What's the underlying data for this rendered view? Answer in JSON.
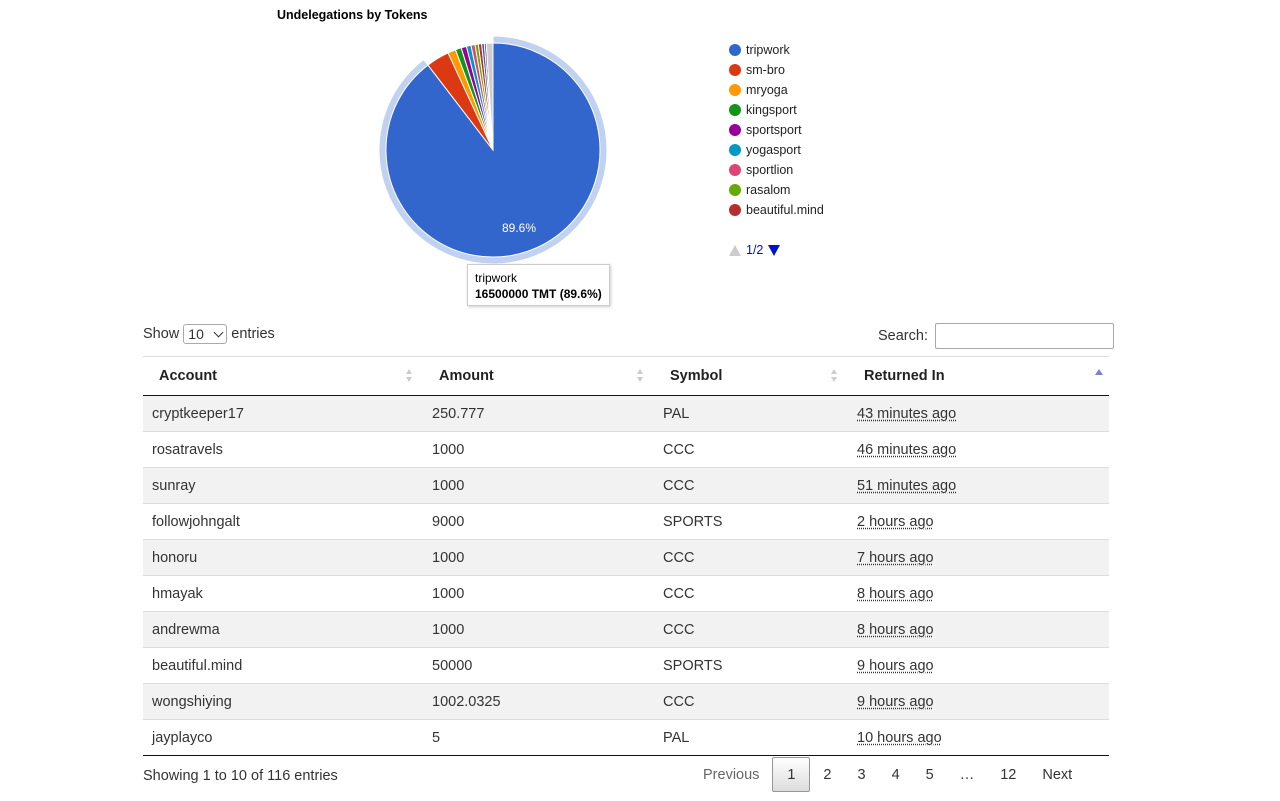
{
  "chart_data": {
    "type": "pie",
    "title": "Undelegations by Tokens",
    "slices": [
      {
        "label": "tripwork",
        "value": 89.6,
        "color": "#3366cc"
      },
      {
        "label": "sm-bro",
        "value": 3.5,
        "color": "#dc3912"
      },
      {
        "label": "mryoga",
        "value": 1.2,
        "color": "#ff9900"
      },
      {
        "label": "kingsport",
        "value": 0.9,
        "color": "#109618"
      },
      {
        "label": "sportsport",
        "value": 0.8,
        "color": "#990099"
      },
      {
        "label": "yogasport",
        "value": 0.7,
        "color": "#0099c6"
      },
      {
        "label": "sportlion",
        "value": 0.6,
        "color": "#dd4477"
      },
      {
        "label": "rasalom",
        "value": 0.5,
        "color": "#66aa00"
      },
      {
        "label": "beautiful.mind",
        "value": 0.5,
        "color": "#b82e2e"
      },
      {
        "label": "",
        "value": 0.4,
        "color": "#316395"
      },
      {
        "label": "",
        "value": 0.3,
        "color": "#994499"
      },
      {
        "label": "",
        "value": 1.0,
        "color": "#cccccc"
      }
    ],
    "slice_label": "89.6%",
    "highlighted": "tripwork",
    "legend_position": "right",
    "legend_pager": "1/2"
  },
  "tooltip": {
    "name": "tripwork",
    "value": "16500000 TMT (89.6%)"
  },
  "length": {
    "show": "Show",
    "value": "10",
    "entries": "entries"
  },
  "search": {
    "label": "Search:",
    "value": ""
  },
  "table": {
    "headers": [
      "Account",
      "Amount",
      "Symbol",
      "Returned In"
    ],
    "rows": [
      [
        "cryptkeeper17",
        "250.777",
        "PAL",
        "43 minutes ago"
      ],
      [
        "rosatravels",
        "1000",
        "CCC",
        "46 minutes ago"
      ],
      [
        "sunray",
        "1000",
        "CCC",
        "51 minutes ago"
      ],
      [
        "followjohngalt",
        "9000",
        "SPORTS",
        "2 hours ago"
      ],
      [
        "honoru",
        "1000",
        "CCC",
        "7 hours ago"
      ],
      [
        "hmayak",
        "1000",
        "CCC",
        "8 hours ago"
      ],
      [
        "andrewma",
        "1000",
        "CCC",
        "8 hours ago"
      ],
      [
        "beautiful.mind",
        "50000",
        "SPORTS",
        "9 hours ago"
      ],
      [
        "wongshiying",
        "1002.0325",
        "CCC",
        "9 hours ago"
      ],
      [
        "jayplayco",
        "5",
        "PAL",
        "10 hours ago"
      ]
    ]
  },
  "info": "Showing 1 to 10 of 116 entries",
  "pagination": [
    "Previous",
    "1",
    "2",
    "3",
    "4",
    "5",
    "…",
    "12",
    "Next"
  ]
}
